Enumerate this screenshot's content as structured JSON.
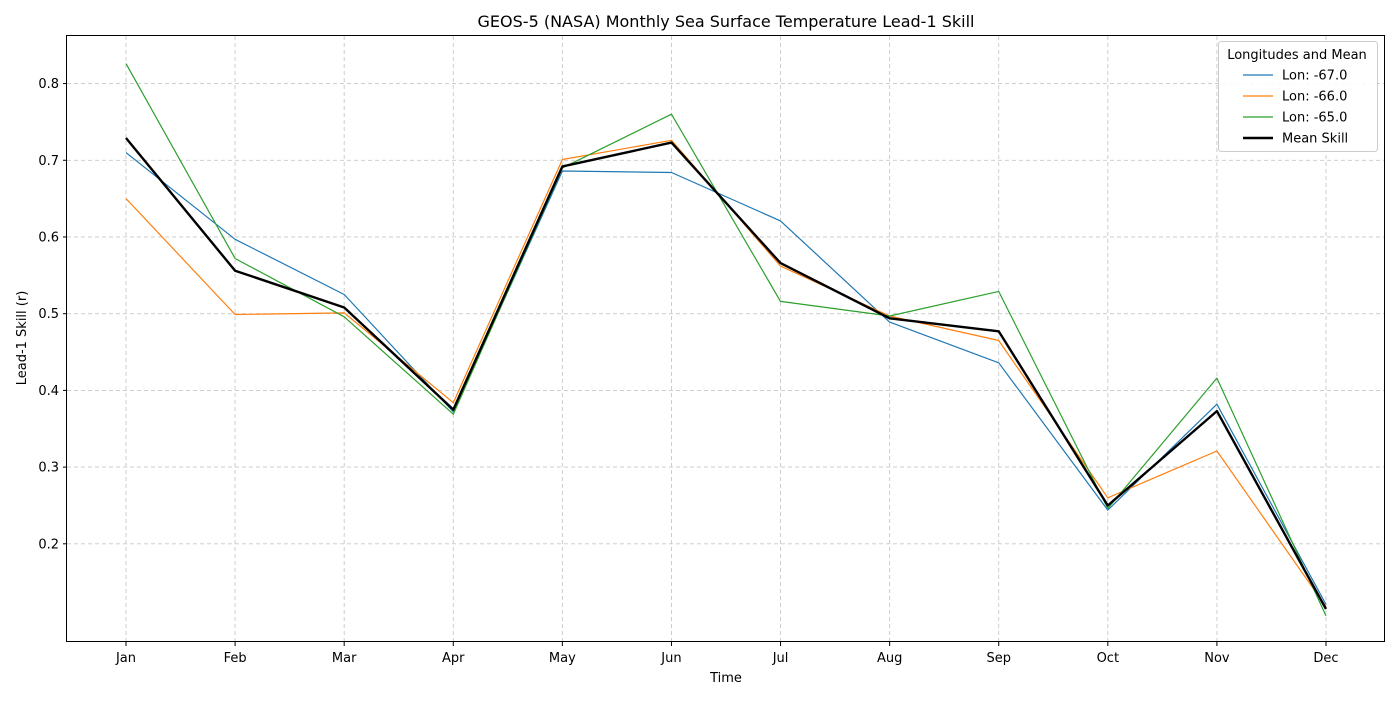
{
  "chart_data": {
    "type": "line",
    "title": "GEOS-5 (NASA) Monthly Sea Surface Temperature Lead-1 Skill",
    "xlabel": "Time",
    "ylabel": "Lead-1 Skill (r)",
    "categories": [
      "Jan",
      "Feb",
      "Mar",
      "Apr",
      "May",
      "Jun",
      "Jul",
      "Aug",
      "Sep",
      "Oct",
      "Nov",
      "Dec"
    ],
    "ylim": [
      0.072,
      0.862
    ],
    "yticks": [
      0.2,
      0.3,
      0.4,
      0.5,
      0.6,
      0.7,
      0.8
    ],
    "grid": true,
    "legend": {
      "title": "Longitudes and Mean",
      "placement": "top-right"
    },
    "series": [
      {
        "name": "Lon: -67.0",
        "color": "#1f77b4",
        "emphasis": false,
        "values": [
          0.71,
          0.597,
          0.525,
          0.372,
          0.686,
          0.684,
          0.621,
          0.489,
          0.436,
          0.244,
          0.382,
          0.121
        ]
      },
      {
        "name": "Lon: -66.0",
        "color": "#ff7f0e",
        "emphasis": false,
        "values": [
          0.65,
          0.499,
          0.501,
          0.384,
          0.701,
          0.726,
          0.562,
          0.497,
          0.465,
          0.26,
          0.321,
          0.118
        ]
      },
      {
        "name": "Lon: -65.0",
        "color": "#2ca02c",
        "emphasis": false,
        "values": [
          0.826,
          0.572,
          0.496,
          0.369,
          0.69,
          0.76,
          0.516,
          0.497,
          0.529,
          0.246,
          0.416,
          0.106
        ]
      },
      {
        "name": "Mean Skill",
        "color": "#000000",
        "emphasis": true,
        "values": [
          0.729,
          0.556,
          0.508,
          0.375,
          0.692,
          0.723,
          0.566,
          0.494,
          0.477,
          0.25,
          0.373,
          0.115
        ]
      }
    ]
  }
}
